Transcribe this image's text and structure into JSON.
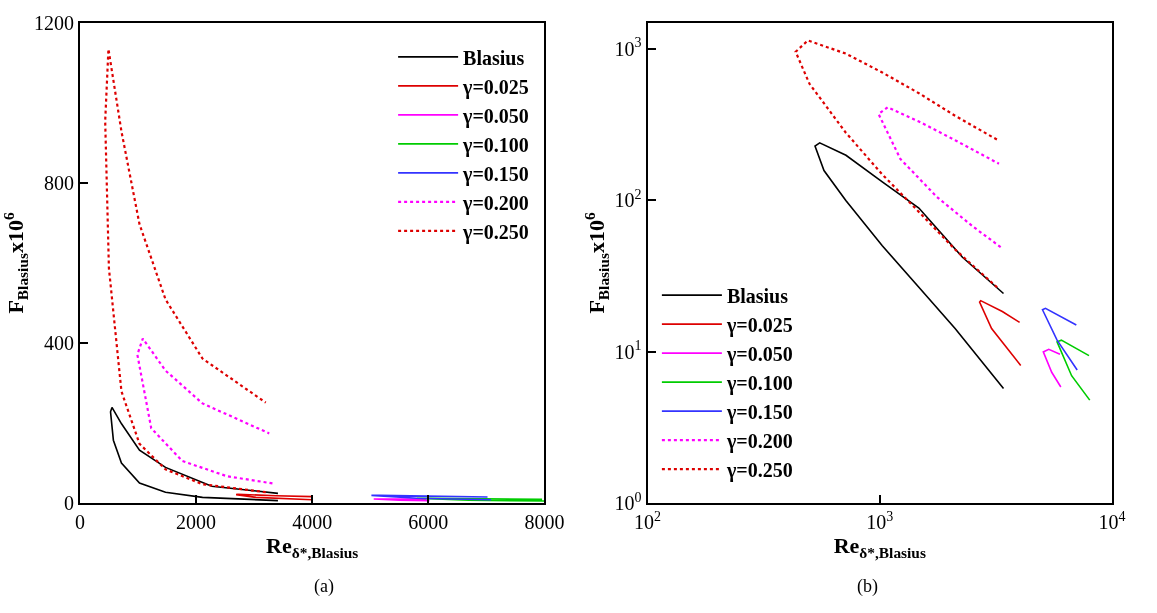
{
  "chart_data": [
    {
      "type": "line",
      "xlabel": "Re$_{δ*,Blasius}$",
      "ylabel": "F$_{Blasius}$x10$^{6}$",
      "xlim": [
        0,
        8000
      ],
      "ylim": [
        0,
        1200
      ],
      "xticks": [
        0,
        2000,
        4000,
        6000,
        8000
      ],
      "yticks": [
        0,
        400,
        800,
        1200
      ],
      "legend": "top right",
      "annotations": [
        "(a)"
      ],
      "series": [
        {
          "name": "Blasius",
          "color": "#000000",
          "line_style": "solid",
          "x": [
            3410,
            2110,
            1473,
            1025,
            714,
            575,
            526,
            551,
            715,
            1025,
            1473,
            2270,
            3410
          ],
          "values": [
            6,
            14,
            27,
            50,
            100,
            157,
            228,
            239,
            198,
            132,
            89,
            42,
            24
          ]
        },
        {
          "name": "γ=0.025",
          "color": "#dd0000",
          "line_style": "solid",
          "x": [
            4000,
            3030,
            2690,
            2720,
            3370,
            4000
          ],
          "values": [
            8,
            14,
            21,
            22,
            18,
            16
          ]
        },
        {
          "name": "γ=0.050",
          "color": "#ff00ff",
          "line_style": "solid",
          "x": [
            6020,
            5500,
            5060,
            5340,
            5970
          ],
          "values": [
            6,
            7,
            10,
            10,
            10
          ]
        },
        {
          "name": "γ=0.100",
          "color": "#00cc00",
          "line_style": "solid",
          "x": [
            8000,
            6700,
            5800,
            6050,
            7960
          ],
          "values": [
            5,
            7,
            12,
            12,
            9
          ]
        },
        {
          "name": "γ=0.150",
          "color": "#3333ff",
          "line_style": "solid",
          "x": [
            7080,
            5800,
            5020,
            5170,
            7020
          ],
          "values": [
            8,
            12,
            19,
            19,
            15
          ]
        },
        {
          "name": "γ=0.200",
          "color": "#ff00ff",
          "line_style": "dotted",
          "x": [
            3315,
            2530,
            1762,
            1227,
            988,
            1082,
            1473,
            2110,
            3260
          ],
          "values": [
            49,
            67,
            105,
            187,
            371,
            411,
            331,
            249,
            174
          ]
        },
        {
          "name": "γ=0.250",
          "color": "#dd0000",
          "line_style": "dotted",
          "x": [
            3200,
            2110,
            1473,
            1025,
            714,
            498,
            434,
            490,
            714,
            1025,
            1473,
            2110,
            3200
          ],
          "values": [
            27,
            47,
            84,
            148,
            279,
            587,
            955,
            1135,
            929,
            697,
            509,
            361,
            251
          ]
        }
      ]
    },
    {
      "type": "line",
      "xlabel": "Re$_{δ*,Blasius}$",
      "ylabel": "F$_{Blasius}$x10$^{6}$",
      "log": "xy",
      "xlim": [
        100,
        10000
      ],
      "ylim": [
        1,
        1480
      ],
      "xticks": [
        {
          "value": 100,
          "label": "10$^{2}$"
        },
        {
          "value": 1000,
          "label": "10$^{3}$"
        },
        {
          "value": 10000,
          "label": "10$^{4}$"
        }
      ],
      "yticks": [
        {
          "value": 1,
          "label": "10$^{0}$"
        },
        {
          "value": 10,
          "label": "10$^{1}$"
        },
        {
          "value": 100,
          "label": "10$^{2}$"
        },
        {
          "value": 1000,
          "label": "10$^{3}$"
        }
      ],
      "legend": "bottom left",
      "annotations": [
        "(b)"
      ],
      "series": [
        {
          "name": "Blasius",
          "color": "#000000",
          "line_style": "solid",
          "x": [
            3410,
            2110,
            1473,
            1025,
            714,
            575,
            526,
            551,
            715,
            1025,
            1473,
            2270,
            3410
          ],
          "values": [
            5.7,
            14.2,
            26.6,
            50,
            99.5,
            157,
            228,
            239,
            198,
            132,
            88.7,
            42,
            24.2
          ]
        },
        {
          "name": "γ=0.025",
          "color": "#dd0000",
          "line_style": "solid",
          "x": [
            4045,
            3030,
            2690,
            2720,
            3370,
            4000
          ],
          "values": [
            8.1,
            14.2,
            21.2,
            21.7,
            18.4,
            15.6
          ]
        },
        {
          "name": "γ=0.050",
          "color": "#ff00ff",
          "line_style": "solid",
          "x": [
            6020,
            5500,
            5060,
            5340,
            5970
          ],
          "values": [
            5.84,
            7.3,
            9.95,
            10.35,
            9.6
          ]
        },
        {
          "name": "γ=0.100",
          "color": "#00cc00",
          "line_style": "solid",
          "x": [
            8020,
            6700,
            5800,
            6050,
            7960
          ],
          "values": [
            4.78,
            6.93,
            11.6,
            11.9,
            9.4
          ]
        },
        {
          "name": "γ=0.150",
          "color": "#3333ff",
          "line_style": "solid",
          "x": [
            7080,
            5800,
            5020,
            5170,
            7020
          ],
          "values": [
            7.55,
            11.9,
            18.9,
            19.3,
            15.0
          ]
        },
        {
          "name": "γ=0.200",
          "color": "#ff00ff",
          "line_style": "dotted",
          "x": [
            3315,
            2530,
            1762,
            1227,
            988,
            1082,
            1473,
            2110,
            3260
          ],
          "values": [
            49,
            66.6,
            105,
            187,
            371,
            411,
            331,
            249,
            174
          ]
        },
        {
          "name": "γ=0.250",
          "color": "#dd0000",
          "line_style": "dotted",
          "x": [
            3200,
            2110,
            1473,
            1025,
            714,
            498,
            434,
            490,
            714,
            1025,
            1473,
            2110,
            3200
          ],
          "values": [
            26.6,
            47.2,
            83.7,
            148,
            279,
            587,
            955,
            1135,
            929,
            697,
            509,
            361,
            251
          ]
        }
      ]
    }
  ]
}
